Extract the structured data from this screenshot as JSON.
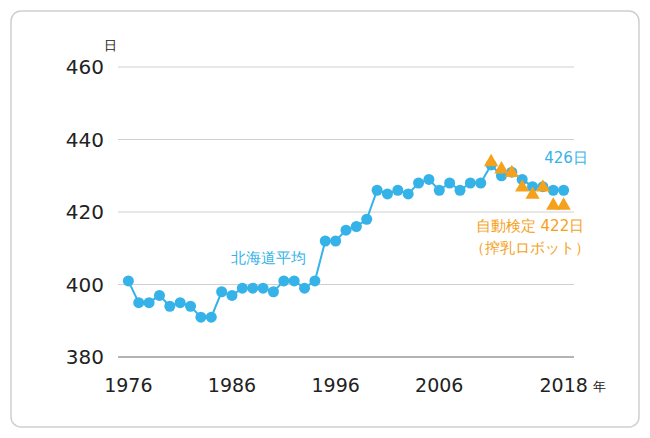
{
  "chart_data": {
    "type": "line",
    "y_label": "日",
    "x_label": "年",
    "x": [
      1976,
      1977,
      1978,
      1979,
      1980,
      1981,
      1982,
      1983,
      1984,
      1985,
      1986,
      1987,
      1988,
      1989,
      1990,
      1991,
      1992,
      1993,
      1994,
      1995,
      1996,
      1997,
      1998,
      1999,
      2000,
      2001,
      2002,
      2003,
      2004,
      2005,
      2006,
      2007,
      2008,
      2009,
      2010,
      2011,
      2012,
      2013,
      2014,
      2015,
      2016,
      2017,
      2018
    ],
    "xlim": [
      1975,
      2019
    ],
    "xticks": [
      1976,
      1986,
      1996,
      2006,
      2018
    ],
    "ylim": [
      380,
      460
    ],
    "yticks": [
      380,
      400,
      420,
      440,
      460
    ],
    "grid": true,
    "series": [
      {
        "name": "北海道平均",
        "color": "#35b2e8",
        "marker": "circle",
        "line_style": "solid",
        "values": [
          401,
          395,
          395,
          397,
          394,
          395,
          394,
          391,
          391,
          398,
          397,
          399,
          399,
          399,
          398,
          401,
          401,
          399,
          401,
          412,
          412,
          415,
          416,
          418,
          426,
          425,
          426,
          425,
          428,
          429,
          426,
          428,
          426,
          428,
          428,
          433,
          430,
          431,
          429,
          427,
          427,
          426,
          426
        ]
      },
      {
        "color": "#f5a11c",
        "marker": "triangle",
        "line_style": "none",
        "values": [
          null,
          null,
          null,
          null,
          null,
          null,
          null,
          null,
          null,
          null,
          null,
          null,
          null,
          null,
          null,
          null,
          null,
          null,
          null,
          null,
          null,
          null,
          null,
          null,
          null,
          null,
          null,
          null,
          null,
          null,
          null,
          null,
          null,
          null,
          null,
          434,
          432,
          431,
          427,
          425,
          427,
          422,
          422
        ]
      }
    ],
    "annotations": [
      "426日",
      "自動検定 422日",
      "（搾乳ロボット）"
    ]
  }
}
